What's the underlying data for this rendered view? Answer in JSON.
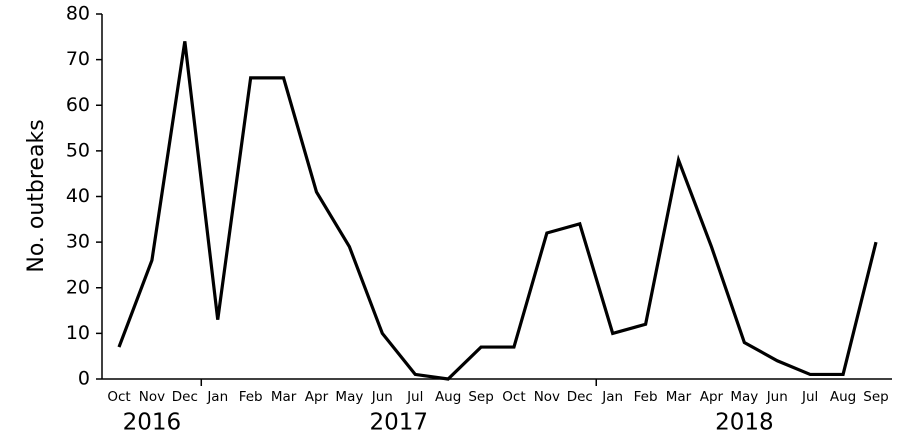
{
  "chart_data": {
    "type": "line",
    "y_label": "No. outbreaks",
    "categories": [
      "Oct",
      "Nov",
      "Dec",
      "Jan",
      "Feb",
      "Mar",
      "Apr",
      "May",
      "Jun",
      "Jul",
      "Aug",
      "Sep",
      "Oct",
      "Nov",
      "Dec",
      "Jan",
      "Feb",
      "Mar",
      "Apr",
      "May",
      "Jun",
      "Jul",
      "Aug",
      "Sep"
    ],
    "years": [
      "2016",
      "2017",
      "2018"
    ],
    "values": [
      7,
      26,
      74,
      13,
      66,
      66,
      41,
      29,
      10,
      1,
      0,
      7,
      7,
      32,
      34,
      10,
      12,
      48,
      29,
      8,
      4,
      1,
      1,
      30
    ],
    "color": "#000000",
    "ylim": [
      0,
      80
    ],
    "yticks": [
      0,
      10,
      20,
      30,
      40,
      50,
      60,
      70,
      80
    ],
    "grid": false
  }
}
